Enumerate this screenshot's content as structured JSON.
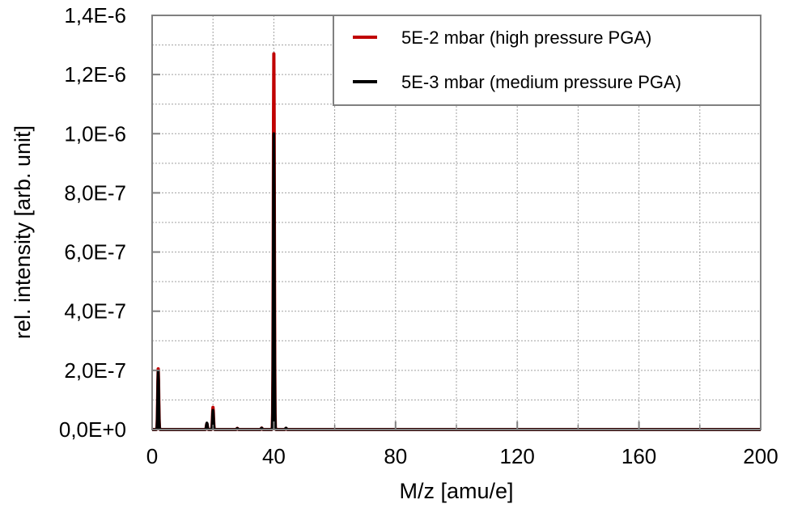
{
  "chart_data": {
    "type": "line",
    "title": "",
    "xlabel": "M/z [amu/e]",
    "ylabel": "rel. intensity [arb. unit]",
    "xlim": [
      0,
      200
    ],
    "ylim": [
      0,
      1.4e-06
    ],
    "x_ticks": [
      0,
      40,
      80,
      120,
      160,
      200
    ],
    "x_tick_labels": [
      "0",
      "40",
      "80",
      "120",
      "160",
      "200"
    ],
    "y_ticks": [
      0,
      2e-07,
      4e-07,
      6e-07,
      8e-07,
      1e-06,
      1.2e-06,
      1.4e-06
    ],
    "y_tick_labels": [
      "0,0E+0",
      "2,0E-7",
      "4,0E-7",
      "6,0E-7",
      "8,0E-7",
      "1,0E-6",
      "1,2E-6",
      "1,4E-6"
    ],
    "grid": true,
    "legend_position": "top-right",
    "series": [
      {
        "name": "5E-2 mbar (high pressure PGA)",
        "color": "#c00000",
        "peaks": [
          {
            "mz": 2,
            "intensity": 2.05e-07
          },
          {
            "mz": 18,
            "intensity": 2e-08
          },
          {
            "mz": 20,
            "intensity": 7.5e-08
          },
          {
            "mz": 28,
            "intensity": 4e-09
          },
          {
            "mz": 36,
            "intensity": 5e-09
          },
          {
            "mz": 40,
            "intensity": 1.27e-06
          },
          {
            "mz": 44,
            "intensity": 4e-09
          }
        ]
      },
      {
        "name": "5E-3 mbar (medium pressure PGA)",
        "color": "#000000",
        "peaks": [
          {
            "mz": 2,
            "intensity": 1.95e-07
          },
          {
            "mz": 18,
            "intensity": 2.2e-08
          },
          {
            "mz": 20,
            "intensity": 6.5e-08
          },
          {
            "mz": 28,
            "intensity": 4e-09
          },
          {
            "mz": 36,
            "intensity": 5e-09
          },
          {
            "mz": 40,
            "intensity": 1e-06
          },
          {
            "mz": 44,
            "intensity": 5e-09
          }
        ]
      }
    ]
  }
}
